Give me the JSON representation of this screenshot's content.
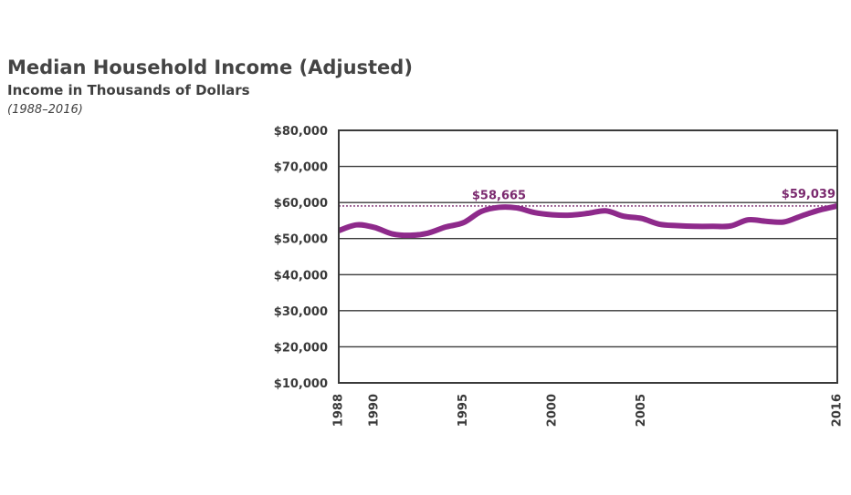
{
  "header": {
    "title": "Median Household Income (Adjusted)",
    "subtitle": "Income in Thousands of Dollars",
    "range": "(1988–2016)"
  },
  "colors": {
    "line": "#8e2a8b",
    "annotation": "#7b2a6f",
    "axis": "#3a3a3a",
    "grid": "#3a3a3a"
  },
  "chart_data": {
    "type": "line",
    "title": "Median Household Income (Adjusted)",
    "subtitle": "Income in Thousands of Dollars",
    "xlabel": "",
    "ylabel": "",
    "xlim": [
      1988,
      2016
    ],
    "ylim": [
      10000,
      80000
    ],
    "y_ticks": [
      10000,
      20000,
      30000,
      40000,
      50000,
      60000,
      70000,
      80000
    ],
    "y_tick_labels": [
      "$10,000",
      "$20,000",
      "$30,000",
      "$40,000",
      "$50,000",
      "$60,000",
      "$70,000",
      "$80,000"
    ],
    "x_ticks": [
      1988,
      1990,
      1995,
      2000,
      2005,
      2016
    ],
    "x_tick_labels": [
      "1988",
      "1990",
      "1995",
      "2000",
      "2005",
      "2016"
    ],
    "grid": true,
    "legend": "none",
    "series": [
      {
        "x": [
          1988,
          1989,
          1990,
          1991,
          1992,
          1993,
          1994,
          1995,
          1996,
          1997,
          1998,
          1999,
          2000,
          2001,
          2002,
          2003,
          2004,
          2005,
          2006,
          2007,
          2008,
          2009,
          2010,
          2011,
          2012,
          2013,
          2014,
          2015,
          2016
        ],
        "values": [
          52200,
          53800,
          53100,
          51300,
          50900,
          51500,
          53200,
          54400,
          57500,
          58665,
          58500,
          57200,
          56600,
          56500,
          57000,
          57700,
          56200,
          55600,
          54000,
          53600,
          53400,
          53400,
          53500,
          55200,
          54800,
          54600,
          56300,
          57900,
          59039
        ]
      }
    ],
    "reference_line": {
      "value": 59039,
      "style": "dotted"
    },
    "annotations": [
      {
        "x": 1997,
        "y": 58665,
        "label": "$58,665"
      },
      {
        "x": 2016,
        "y": 59039,
        "label": "$59,039"
      }
    ]
  }
}
